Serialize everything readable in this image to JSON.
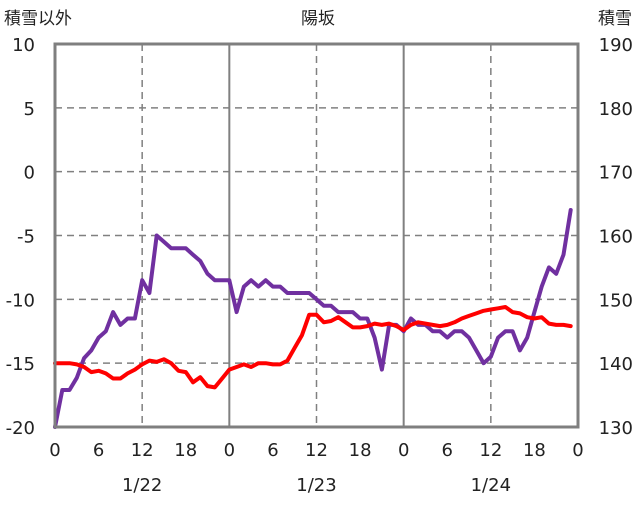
{
  "chart_data": {
    "type": "line",
    "title": "陽坂",
    "left_axis_title": "積雪以外",
    "right_axis_title": "積雪",
    "left_ylim": [
      -20,
      10
    ],
    "right_ylim": [
      130,
      190
    ],
    "left_ticks": [
      "10",
      "5",
      "0",
      "-5",
      "-10",
      "-15",
      "-20"
    ],
    "right_ticks": [
      "190",
      "180",
      "170",
      "160",
      "150",
      "140",
      "130"
    ],
    "xlim_hours": [
      0,
      72
    ],
    "x_tick_labels": [
      "0",
      "6",
      "12",
      "18",
      "0",
      "6",
      "12",
      "18",
      "0",
      "6",
      "12",
      "18",
      "0"
    ],
    "date_labels": [
      "1/22",
      "1/23",
      "1/24"
    ],
    "grid": true,
    "series": [
      {
        "name": "積雪",
        "axis": "right",
        "color": "#7030a0",
        "values": [
          130,
          135.8,
          135.8,
          137.7,
          140.8,
          142,
          144,
          145,
          148,
          146,
          147,
          147,
          153,
          151,
          160,
          159,
          158,
          158,
          158,
          157,
          156,
          154,
          153,
          153,
          153,
          148,
          152,
          153,
          152,
          153,
          152,
          152,
          151,
          151,
          151,
          151,
          150,
          149,
          149,
          148,
          148,
          148,
          147,
          147,
          144,
          139,
          146,
          146,
          145,
          147,
          146,
          146,
          145,
          145,
          144,
          145,
          145,
          144,
          142,
          140,
          141,
          144,
          145,
          145,
          142,
          144,
          148,
          152,
          155,
          154,
          157,
          164
        ]
      },
      {
        "name": "積雪以外",
        "axis": "left",
        "color": "#ff0000",
        "values": [
          -15,
          -15,
          -15,
          -15.1,
          -15.3,
          -15.7,
          -15.6,
          -15.8,
          -16.2,
          -16.2,
          -15.8,
          -15.5,
          -15.1,
          -14.8,
          -14.9,
          -14.7,
          -15,
          -15.6,
          -15.7,
          -16.5,
          -16.1,
          -16.8,
          -16.9,
          -16.2,
          -15.5,
          -15.3,
          -15.1,
          -15.3,
          -15,
          -15,
          -15.1,
          -15.1,
          -14.8,
          -13.8,
          -12.8,
          -11.2,
          -11.2,
          -11.8,
          -11.7,
          -11.4,
          -11.8,
          -12.2,
          -12.2,
          -12.1,
          -11.9,
          -12,
          -11.9,
          -12.1,
          -12.4,
          -12,
          -11.8,
          -11.9,
          -12,
          -12.1,
          -12,
          -11.8,
          -11.5,
          -11.3,
          -11.1,
          -10.9,
          -10.8,
          -10.7,
          -10.6,
          -11,
          -11.1,
          -11.4,
          -11.5,
          -11.4,
          -11.9,
          -12,
          -12,
          -12.1
        ]
      }
    ]
  }
}
